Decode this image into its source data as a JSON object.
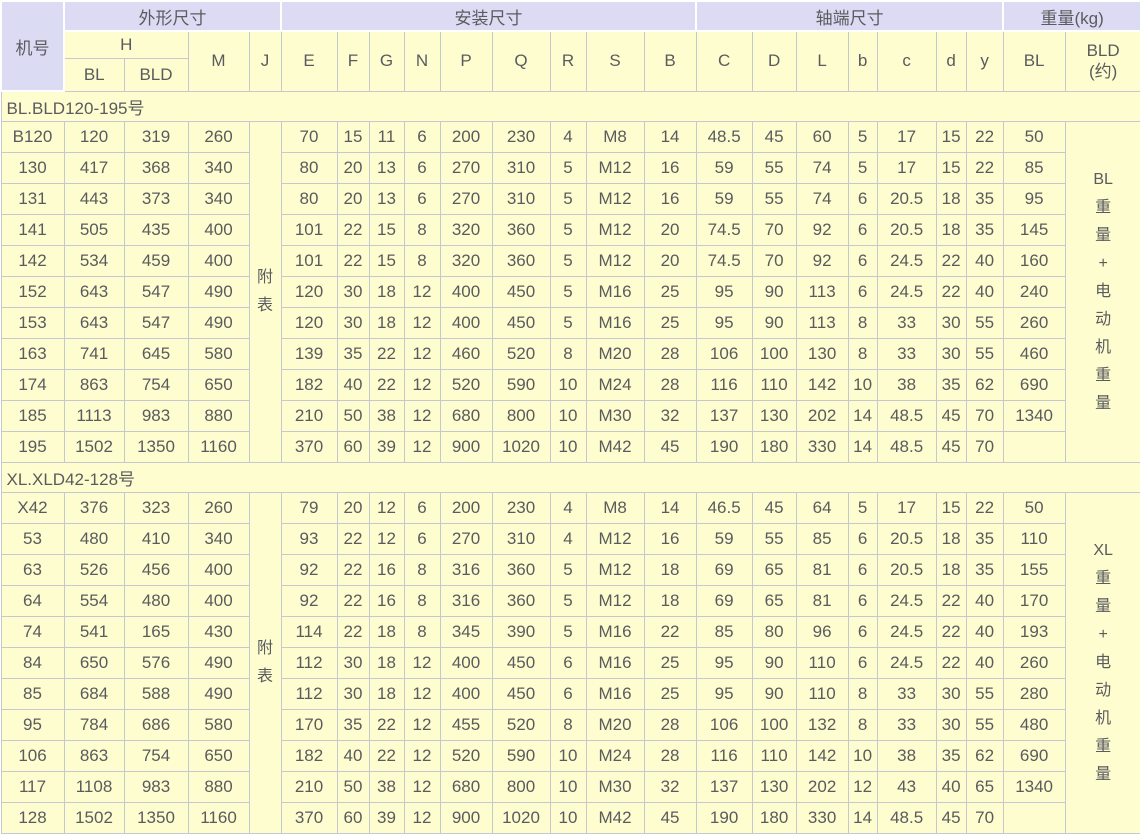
{
  "colors": {
    "header_band": "#dbdbf4",
    "cell_background": "#fdfdd0",
    "grid_line": "#c7c7cf",
    "text": "#5b5b5e"
  },
  "header": {
    "corner": "机号",
    "groups": [
      {
        "label": "外形尺寸"
      },
      {
        "label": "安装尺寸"
      },
      {
        "label": "轴端尺寸"
      },
      {
        "label": "重量(kg)"
      }
    ],
    "h_label": "H",
    "h_children": [
      "BL",
      "BLD"
    ],
    "cols": [
      "M",
      "J",
      "E",
      "F",
      "G",
      "N",
      "P",
      "Q",
      "R",
      "S",
      "B",
      "C",
      "D",
      "L",
      "b",
      "c",
      "d",
      "y",
      "BL",
      "BLD\n(约)"
    ]
  },
  "sections": [
    {
      "title": "BL.BLD120-195号",
      "j_note": "附\n表",
      "weight_note": "BL\n重\n量\n+\n电\n动\n机\n重\n量",
      "rows": [
        [
          "B120",
          "120",
          "319",
          "260",
          "70",
          "15",
          "11",
          "6",
          "200",
          "230",
          "4",
          "M8",
          "14",
          "48.5",
          "45",
          "60",
          "5",
          "17",
          "15",
          "22",
          "50"
        ],
        [
          "130",
          "417",
          "368",
          "340",
          "80",
          "20",
          "13",
          "6",
          "270",
          "310",
          "5",
          "M12",
          "16",
          "59",
          "55",
          "74",
          "5",
          "17",
          "15",
          "22",
          "85"
        ],
        [
          "131",
          "443",
          "373",
          "340",
          "80",
          "20",
          "13",
          "6",
          "270",
          "310",
          "5",
          "M12",
          "16",
          "59",
          "55",
          "74",
          "6",
          "20.5",
          "18",
          "35",
          "95"
        ],
        [
          "141",
          "505",
          "435",
          "400",
          "101",
          "22",
          "15",
          "8",
          "320",
          "360",
          "5",
          "M12",
          "20",
          "74.5",
          "70",
          "92",
          "6",
          "20.5",
          "18",
          "35",
          "145"
        ],
        [
          "142",
          "534",
          "459",
          "400",
          "101",
          "22",
          "15",
          "8",
          "320",
          "360",
          "5",
          "M12",
          "20",
          "74.5",
          "70",
          "92",
          "6",
          "24.5",
          "22",
          "40",
          "160"
        ],
        [
          "152",
          "643",
          "547",
          "490",
          "120",
          "30",
          "18",
          "12",
          "400",
          "450",
          "5",
          "M16",
          "25",
          "95",
          "90",
          "113",
          "6",
          "24.5",
          "22",
          "40",
          "240"
        ],
        [
          "153",
          "643",
          "547",
          "490",
          "120",
          "30",
          "18",
          "12",
          "400",
          "450",
          "5",
          "M16",
          "25",
          "95",
          "90",
          "113",
          "8",
          "33",
          "30",
          "55",
          "260"
        ],
        [
          "163",
          "741",
          "645",
          "580",
          "139",
          "35",
          "22",
          "12",
          "460",
          "520",
          "8",
          "M20",
          "28",
          "106",
          "100",
          "130",
          "8",
          "33",
          "30",
          "55",
          "460"
        ],
        [
          "174",
          "863",
          "754",
          "650",
          "182",
          "40",
          "22",
          "12",
          "520",
          "590",
          "10",
          "M24",
          "28",
          "116",
          "110",
          "142",
          "10",
          "38",
          "35",
          "62",
          "690"
        ],
        [
          "185",
          "1113",
          "983",
          "880",
          "210",
          "50",
          "38",
          "12",
          "680",
          "800",
          "10",
          "M30",
          "32",
          "137",
          "130",
          "202",
          "14",
          "48.5",
          "45",
          "70",
          "1340"
        ],
        [
          "195",
          "1502",
          "1350",
          "1160",
          "370",
          "60",
          "39",
          "12",
          "900",
          "1020",
          "10",
          "M42",
          "45",
          "190",
          "180",
          "330",
          "14",
          "48.5",
          "45",
          "70",
          ""
        ]
      ]
    },
    {
      "title": "XL.XLD42-128号",
      "j_note": "附\n表",
      "weight_note": "XL\n重\n量\n+\n电\n动\n机\n重\n量",
      "rows": [
        [
          "X42",
          "376",
          "323",
          "260",
          "79",
          "20",
          "12",
          "6",
          "200",
          "230",
          "4",
          "M8",
          "14",
          "46.5",
          "45",
          "64",
          "5",
          "17",
          "15",
          "22",
          "50"
        ],
        [
          "53",
          "480",
          "410",
          "340",
          "93",
          "22",
          "12",
          "6",
          "270",
          "310",
          "4",
          "M12",
          "16",
          "59",
          "55",
          "85",
          "6",
          "20.5",
          "18",
          "35",
          "110"
        ],
        [
          "63",
          "526",
          "456",
          "400",
          "92",
          "22",
          "16",
          "8",
          "316",
          "360",
          "5",
          "M12",
          "18",
          "69",
          "65",
          "81",
          "6",
          "20.5",
          "18",
          "35",
          "155"
        ],
        [
          "64",
          "554",
          "480",
          "400",
          "92",
          "22",
          "16",
          "8",
          "316",
          "360",
          "5",
          "M12",
          "18",
          "69",
          "65",
          "81",
          "6",
          "24.5",
          "22",
          "40",
          "170"
        ],
        [
          "74",
          "541",
          "165",
          "430",
          "114",
          "22",
          "18",
          "8",
          "345",
          "390",
          "5",
          "M16",
          "22",
          "85",
          "80",
          "96",
          "6",
          "24.5",
          "22",
          "40",
          "193"
        ],
        [
          "84",
          "650",
          "576",
          "490",
          "112",
          "30",
          "18",
          "12",
          "400",
          "450",
          "6",
          "M16",
          "25",
          "95",
          "90",
          "110",
          "6",
          "24.5",
          "22",
          "40",
          "260"
        ],
        [
          "85",
          "684",
          "588",
          "490",
          "112",
          "30",
          "18",
          "12",
          "400",
          "450",
          "6",
          "M16",
          "25",
          "95",
          "90",
          "110",
          "8",
          "33",
          "30",
          "55",
          "280"
        ],
        [
          "95",
          "784",
          "686",
          "580",
          "170",
          "35",
          "22",
          "12",
          "455",
          "520",
          "8",
          "M20",
          "28",
          "106",
          "100",
          "132",
          "8",
          "33",
          "30",
          "55",
          "480"
        ],
        [
          "106",
          "863",
          "754",
          "650",
          "182",
          "40",
          "22",
          "12",
          "520",
          "590",
          "10",
          "M24",
          "28",
          "116",
          "110",
          "142",
          "10",
          "38",
          "35",
          "62",
          "690"
        ],
        [
          "117",
          "1108",
          "983",
          "880",
          "210",
          "50",
          "38",
          "12",
          "680",
          "800",
          "10",
          "M30",
          "32",
          "137",
          "130",
          "202",
          "12",
          "43",
          "40",
          "65",
          "1340"
        ],
        [
          "128",
          "1502",
          "1350",
          "1160",
          "370",
          "60",
          "39",
          "12",
          "900",
          "1020",
          "10",
          "M42",
          "45",
          "190",
          "180",
          "330",
          "14",
          "48.5",
          "45",
          "70",
          ""
        ]
      ]
    }
  ]
}
